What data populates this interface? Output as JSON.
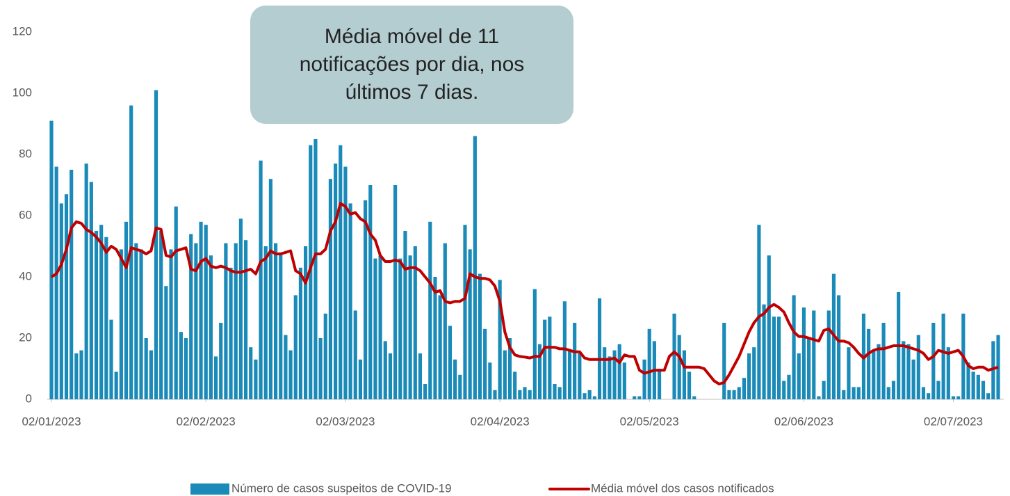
{
  "chart_data": {
    "type": "bar_line",
    "annotation": "Média móvel de 11 notificações por dia, nos últimos 7 dias.",
    "x": [
      "2023-01-02",
      "2023-01-03",
      "2023-01-04",
      "2023-01-05",
      "2023-01-06",
      "2023-01-07",
      "2023-01-08",
      "2023-01-09",
      "2023-01-10",
      "2023-01-11",
      "2023-01-12",
      "2023-01-13",
      "2023-01-14",
      "2023-01-15",
      "2023-01-16",
      "2023-01-17",
      "2023-01-18",
      "2023-01-19",
      "2023-01-20",
      "2023-01-21",
      "2023-01-22",
      "2023-01-23",
      "2023-01-24",
      "2023-01-25",
      "2023-01-26",
      "2023-01-27",
      "2023-01-28",
      "2023-01-29",
      "2023-01-30",
      "2023-01-31",
      "2023-02-01",
      "2023-02-02",
      "2023-02-03",
      "2023-02-04",
      "2023-02-05",
      "2023-02-06",
      "2023-02-07",
      "2023-02-08",
      "2023-02-09",
      "2023-02-10",
      "2023-02-11",
      "2023-02-12",
      "2023-02-13",
      "2023-02-14",
      "2023-02-15",
      "2023-02-16",
      "2023-02-17",
      "2023-02-18",
      "2023-02-19",
      "2023-02-20",
      "2023-02-21",
      "2023-02-22",
      "2023-02-23",
      "2023-02-24",
      "2023-02-25",
      "2023-02-26",
      "2023-02-27",
      "2023-02-28",
      "2023-03-01",
      "2023-03-02",
      "2023-03-03",
      "2023-03-04",
      "2023-03-05",
      "2023-03-06",
      "2023-03-07",
      "2023-03-08",
      "2023-03-09",
      "2023-03-10",
      "2023-03-11",
      "2023-03-12",
      "2023-03-13",
      "2023-03-14",
      "2023-03-15",
      "2023-03-16",
      "2023-03-17",
      "2023-03-18",
      "2023-03-19",
      "2023-03-20",
      "2023-03-21",
      "2023-03-22",
      "2023-03-23",
      "2023-03-24",
      "2023-03-25",
      "2023-03-26",
      "2023-03-27",
      "2023-03-28",
      "2023-03-29",
      "2023-03-30",
      "2023-03-31",
      "2023-04-01",
      "2023-04-02",
      "2023-04-03",
      "2023-04-04",
      "2023-04-05",
      "2023-04-06",
      "2023-04-07",
      "2023-04-08",
      "2023-04-09",
      "2023-04-10",
      "2023-04-11",
      "2023-04-12",
      "2023-04-13",
      "2023-04-14",
      "2023-04-15",
      "2023-04-16",
      "2023-04-17",
      "2023-04-18",
      "2023-04-19",
      "2023-04-20",
      "2023-04-21",
      "2023-04-22",
      "2023-04-23",
      "2023-04-24",
      "2023-04-25",
      "2023-04-26",
      "2023-04-27",
      "2023-04-28",
      "2023-04-29",
      "2023-04-30",
      "2023-05-01",
      "2023-05-02",
      "2023-05-03",
      "2023-05-04",
      "2023-05-05",
      "2023-05-06",
      "2023-05-07",
      "2023-05-08",
      "2023-05-09",
      "2023-05-10",
      "2023-05-11",
      "2023-05-12",
      "2023-05-13",
      "2023-05-14",
      "2023-05-15",
      "2023-05-16",
      "2023-05-17",
      "2023-05-18",
      "2023-05-19",
      "2023-05-20",
      "2023-05-21",
      "2023-05-22",
      "2023-05-23",
      "2023-05-24",
      "2023-05-25",
      "2023-05-26",
      "2023-05-27",
      "2023-05-28",
      "2023-05-29",
      "2023-05-30",
      "2023-05-31",
      "2023-06-01",
      "2023-06-02",
      "2023-06-03",
      "2023-06-04",
      "2023-06-05",
      "2023-06-06",
      "2023-06-07",
      "2023-06-08",
      "2023-06-09",
      "2023-06-10",
      "2023-06-11",
      "2023-06-12",
      "2023-06-13",
      "2023-06-14",
      "2023-06-15",
      "2023-06-16",
      "2023-06-17",
      "2023-06-18",
      "2023-06-19",
      "2023-06-20",
      "2023-06-21",
      "2023-06-22",
      "2023-06-23",
      "2023-06-24",
      "2023-06-25",
      "2023-06-26",
      "2023-06-27",
      "2023-06-28",
      "2023-06-29",
      "2023-06-30",
      "2023-07-01",
      "2023-07-02",
      "2023-07-03",
      "2023-07-04",
      "2023-07-05",
      "2023-07-06",
      "2023-07-07",
      "2023-07-08",
      "2023-07-09",
      "2023-07-10",
      "2023-07-11"
    ],
    "series": [
      {
        "name": "Número de casos suspeitos de COVID-19",
        "type": "bar",
        "color": "#1a8ab8",
        "values": [
          91,
          76,
          64,
          67,
          75,
          15,
          16,
          77,
          71,
          55,
          57,
          53,
          26,
          9,
          49,
          58,
          96,
          51,
          49,
          20,
          16,
          101,
          55,
          37,
          49,
          63,
          22,
          20,
          54,
          51,
          58,
          57,
          47,
          14,
          25,
          51,
          43,
          51,
          59,
          52,
          17,
          13,
          78,
          50,
          72,
          51,
          48,
          21,
          16,
          34,
          43,
          50,
          83,
          85,
          20,
          28,
          72,
          77,
          83,
          76,
          64,
          29,
          13,
          65,
          70,
          46,
          47,
          19,
          15,
          70,
          46,
          55,
          47,
          50,
          15,
          5,
          58,
          40,
          34,
          51,
          24,
          13,
          8,
          57,
          49,
          86,
          41,
          23,
          12,
          3,
          39,
          16,
          20,
          9,
          3,
          4,
          3,
          36,
          18,
          26,
          27,
          5,
          4,
          32,
          16,
          25,
          15,
          2,
          3,
          1,
          33,
          17,
          14,
          16,
          18,
          12,
          0,
          1,
          1,
          13,
          23,
          19,
          10,
          0,
          0,
          28,
          21,
          16,
          9,
          1,
          0,
          0,
          0,
          0,
          0,
          25,
          3,
          3,
          4,
          7,
          15,
          17,
          57,
          31,
          47,
          27,
          27,
          6,
          8,
          34,
          15,
          30,
          20,
          29,
          1,
          6,
          29,
          41,
          34,
          3,
          17,
          4,
          4,
          28,
          23,
          16,
          18,
          25,
          4,
          6,
          35,
          19,
          18,
          13,
          21,
          4,
          2,
          25,
          6,
          28,
          17,
          1,
          1,
          28,
          12,
          9,
          8,
          6,
          2,
          19,
          21
        ]
      },
      {
        "name": "Média móvel dos casos notificados",
        "type": "line",
        "color": "#c00000",
        "values": [
          40,
          41,
          44,
          49,
          56,
          58,
          57.5,
          55.5,
          54.5,
          53,
          51,
          48,
          50,
          49,
          46,
          43,
          49.5,
          49,
          48.5,
          47.5,
          48.5,
          56,
          55.5,
          47,
          46.5,
          48.5,
          49,
          49.5,
          42.5,
          42,
          45,
          46,
          43.5,
          43,
          43.5,
          43,
          42,
          41.5,
          41.5,
          42,
          42.5,
          41,
          45,
          46,
          48.5,
          47.5,
          47.5,
          48,
          48.5,
          42,
          41,
          38,
          43,
          47.5,
          47.5,
          49,
          55,
          58,
          64,
          63,
          60.5,
          61,
          59,
          58,
          54,
          52,
          47,
          45,
          45,
          45.5,
          45,
          42.5,
          43,
          43,
          42,
          40,
          38,
          35,
          35.5,
          32,
          31.5,
          32,
          32,
          33,
          41,
          40,
          39.5,
          39.5,
          39,
          37,
          32,
          22,
          17,
          14.5,
          14,
          13.8,
          13.5,
          14,
          14,
          17,
          17,
          17,
          16.5,
          16.5,
          16,
          15.5,
          15.5,
          13.5,
          13,
          13,
          13,
          13,
          13,
          13.5,
          12,
          14.5,
          14,
          14,
          9.5,
          8.5,
          9,
          9.5,
          9.5,
          9.5,
          14,
          15.5,
          14,
          10.5,
          10.5,
          10.5,
          10.5,
          10,
          8,
          6,
          5,
          5.5,
          8,
          11,
          14,
          18,
          22,
          25,
          27,
          28,
          30,
          31,
          30,
          28.5,
          25,
          22,
          20.5,
          20.5,
          20,
          19.5,
          19,
          22.5,
          23,
          21,
          19,
          19,
          18.5,
          17,
          15,
          13.5,
          15,
          16,
          16.5,
          16.5,
          17,
          17.5,
          17.5,
          17.5,
          17,
          16.5,
          16,
          15,
          13,
          14,
          16,
          15.5,
          15,
          15.5,
          16,
          14,
          11,
          10,
          10.5,
          10.5,
          9.5,
          10,
          10.5
        ]
      }
    ],
    "xlim": [
      "2023-01-02",
      "2023-07-11"
    ],
    "xticks": [
      {
        "value": "2023-01-02",
        "label": "02/01/2023"
      },
      {
        "value": "2023-02-02",
        "label": "02/02/2023"
      },
      {
        "value": "2023-03-02",
        "label": "02/03/2023"
      },
      {
        "value": "2023-04-02",
        "label": "02/04/2023"
      },
      {
        "value": "2023-05-02",
        "label": "02/05/2023"
      },
      {
        "value": "2023-06-02",
        "label": "02/06/2023"
      },
      {
        "value": "2023-07-02",
        "label": "02/07/2023"
      }
    ],
    "ylim": [
      0,
      120
    ],
    "yticks": [
      0,
      20,
      40,
      60,
      80,
      100,
      120
    ],
    "grid": false,
    "legend": "bottom"
  }
}
